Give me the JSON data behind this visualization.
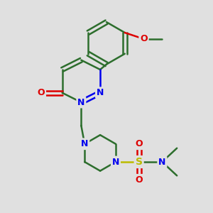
{
  "background_color": "#e0e0e0",
  "bond_color": "#2d6e2d",
  "N_color": "#0000ee",
  "O_color": "#dd0000",
  "S_color": "#bbbb00",
  "bond_width": 1.8,
  "font_size": 9,
  "fig_width": 3.0,
  "fig_height": 3.0,
  "dpi": 100,
  "xlim": [
    0,
    10
  ],
  "ylim": [
    0,
    10
  ]
}
